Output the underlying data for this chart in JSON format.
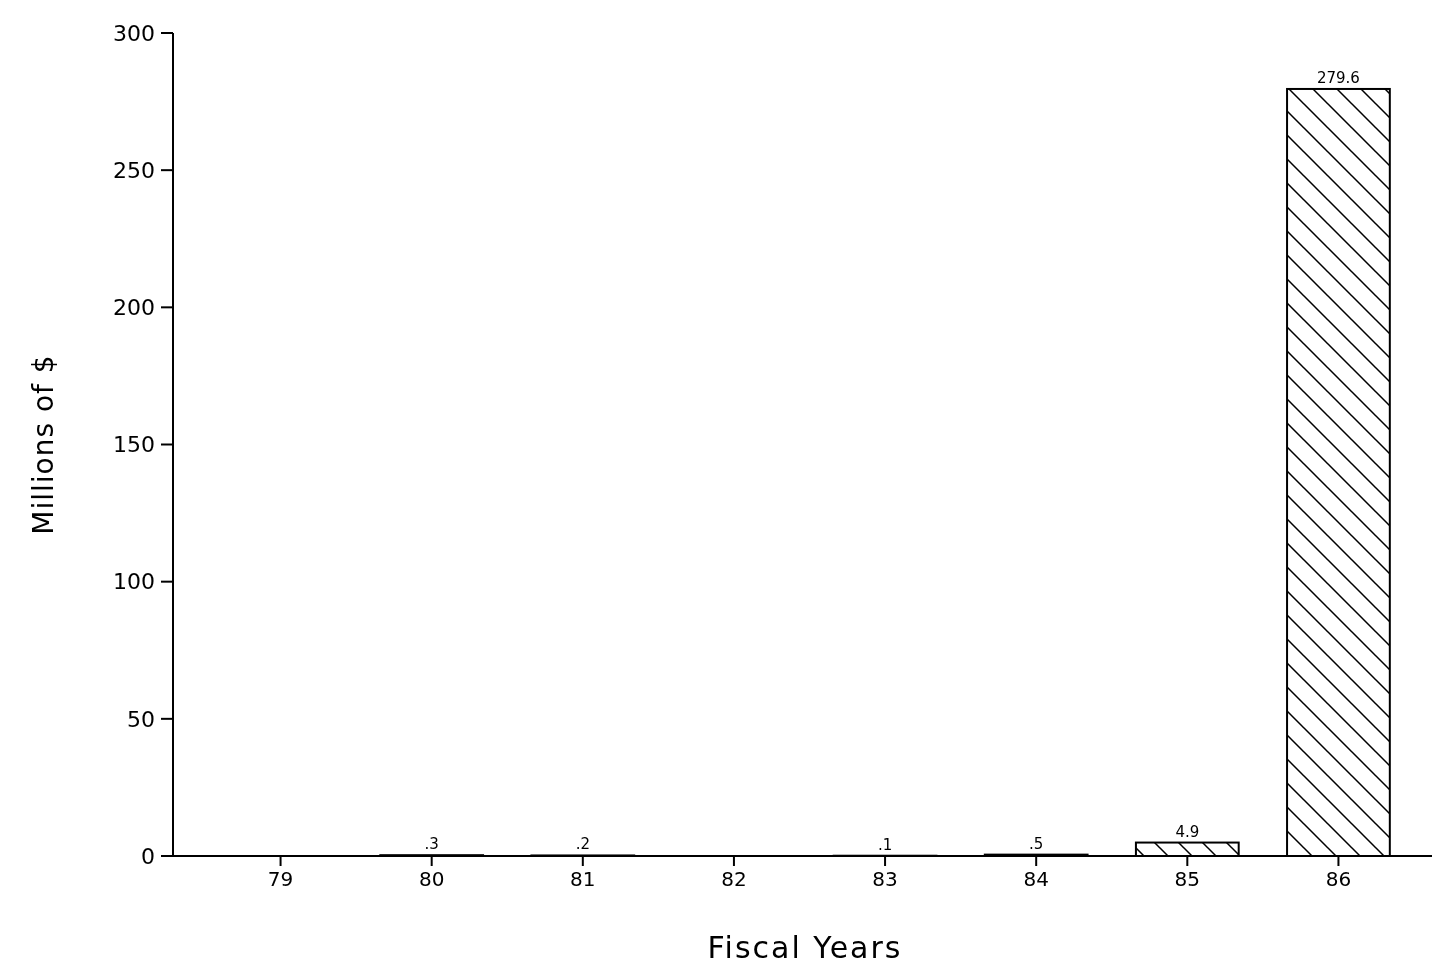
{
  "chart_data": {
    "type": "bar",
    "xlabel": "Fiscal Years",
    "ylabel": "Millions of $",
    "categories": [
      "79",
      "80",
      "81",
      "82",
      "83",
      "84",
      "85",
      "86"
    ],
    "values": [
      null,
      0.3,
      0.2,
      null,
      0.1,
      0.5,
      4.9,
      279.6
    ],
    "value_labels": [
      null,
      ".3",
      ".2",
      null,
      ".1",
      ".5",
      "4.9",
      "279.6"
    ],
    "color": "#000000",
    "ylim": [
      0,
      300
    ],
    "yticks": [
      0,
      50,
      100,
      150,
      200,
      250,
      300
    ],
    "grid": false
  }
}
